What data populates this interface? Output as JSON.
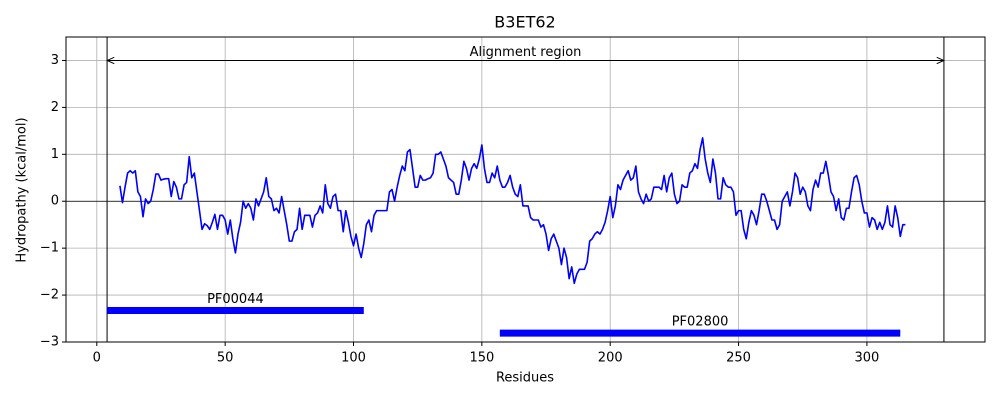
{
  "chart_data": {
    "type": "line",
    "title": "B3ET62",
    "xlabel": "Residues",
    "ylabel": "Hydropathy (kcal/mol)",
    "xlim": [
      -12,
      346
    ],
    "ylim": [
      -3,
      3.5
    ],
    "xticks": [
      0,
      50,
      100,
      150,
      200,
      250,
      300
    ],
    "yticks": [
      {
        "value": -3,
        "label": "−3"
      },
      {
        "value": -2,
        "label": "−2"
      },
      {
        "value": -1,
        "label": "−1"
      },
      0,
      1,
      2,
      3
    ],
    "grid": true,
    "hline": 0,
    "region": {
      "label": "Alignment region",
      "start": 4,
      "end": 330,
      "y": 3
    },
    "domains": [
      {
        "name": "PF00044",
        "start": 4,
        "end": 104,
        "y": -2.33,
        "color": "#0000ff"
      },
      {
        "name": "PF02800",
        "start": 157,
        "end": 313,
        "y": -2.81,
        "color": "#0000ff"
      }
    ],
    "x": [
      9,
      10,
      11,
      12,
      13,
      14,
      15,
      16,
      17,
      18,
      19,
      20,
      21,
      22,
      23,
      24,
      25,
      26,
      27,
      28,
      29,
      30,
      31,
      32,
      33,
      34,
      35,
      36,
      37,
      38,
      39,
      40,
      41,
      42,
      43,
      44,
      45,
      46,
      47,
      48,
      49,
      50,
      51,
      52,
      53,
      54,
      55,
      56,
      57,
      58,
      59,
      60,
      61,
      62,
      63,
      64,
      65,
      66,
      67,
      68,
      69,
      70,
      71,
      72,
      73,
      74,
      75,
      76,
      77,
      78,
      79,
      80,
      81,
      82,
      83,
      84,
      85,
      86,
      87,
      88,
      89,
      90,
      91,
      92,
      93,
      94,
      95,
      96,
      97,
      98,
      99,
      100,
      101,
      102,
      103,
      104,
      105,
      106,
      107,
      108,
      109,
      110,
      111,
      112,
      113,
      114,
      115,
      116,
      117,
      118,
      119,
      120,
      121,
      122,
      123,
      124,
      125,
      126,
      127,
      128,
      129,
      130,
      131,
      132,
      133,
      134,
      135,
      136,
      137,
      138,
      139,
      140,
      141,
      142,
      143,
      144,
      145,
      146,
      147,
      148,
      149,
      150,
      151,
      152,
      153,
      154,
      155,
      156,
      157,
      158,
      159,
      160,
      161,
      162,
      163,
      164,
      165,
      166,
      167,
      168,
      169,
      170,
      171,
      172,
      173,
      174,
      175,
      176,
      177,
      178,
      179,
      180,
      181,
      182,
      183,
      184,
      185,
      186,
      187,
      188,
      189,
      190,
      191,
      192,
      193,
      194,
      195,
      196,
      197,
      198,
      199,
      200,
      201,
      202,
      203,
      204,
      205,
      206,
      207,
      208,
      209,
      210,
      211,
      212,
      213,
      214,
      215,
      216,
      217,
      218,
      219,
      220,
      221,
      222,
      223,
      224,
      225,
      226,
      227,
      228,
      229,
      230,
      231,
      232,
      233,
      234,
      235,
      236,
      237,
      238,
      239,
      240,
      241,
      242,
      243,
      244,
      245,
      246,
      247,
      248,
      249,
      250,
      251,
      252,
      253,
      254,
      255,
      256,
      257,
      258,
      259,
      260,
      261,
      262,
      263,
      264,
      265,
      266,
      267,
      268,
      269,
      270,
      271,
      272,
      273,
      274,
      275,
      276,
      277,
      278,
      279,
      280,
      281,
      282,
      283,
      284,
      285,
      286,
      287,
      288,
      289,
      290,
      291,
      292,
      293,
      294,
      295,
      296,
      297,
      298,
      299,
      300,
      301,
      302,
      303,
      304,
      305,
      306,
      307,
      308,
      309,
      310,
      311,
      312,
      313,
      314,
      315
    ],
    "series": [
      {
        "color": "#0000ff",
        "values": [
          0.33,
          -0.03,
          0.3,
          0.6,
          0.65,
          0.6,
          0.65,
          0.2,
          0.1,
          -0.33,
          0.05,
          -0.05,
          0,
          0.25,
          0.58,
          0.58,
          0.45,
          0.47,
          0.48,
          0.48,
          0.1,
          0.42,
          0.3,
          0.05,
          0.05,
          0.35,
          0.4,
          0.95,
          0.5,
          0.6,
          0.2,
          -0.2,
          -0.6,
          -0.48,
          -0.52,
          -0.6,
          -0.45,
          -0.28,
          -0.6,
          -0.3,
          -0.3,
          -0.4,
          -0.7,
          -0.4,
          -0.8,
          -1.1,
          -0.7,
          -0.45,
          0,
          -0.15,
          -0.05,
          -0.15,
          -0.4,
          0.05,
          -0.1,
          0.05,
          0.2,
          0.5,
          0.1,
          0.05,
          -0.2,
          -0.15,
          -0.25,
          0.1,
          -0.2,
          -0.5,
          -0.85,
          -0.85,
          -0.65,
          -0.6,
          -0.15,
          -0.6,
          -0.3,
          -0.3,
          -0.3,
          -0.55,
          -0.3,
          -0.25,
          -0.1,
          -0.25,
          0.35,
          -0.05,
          -0.15,
          0.1,
          0.15,
          -0.2,
          -0.2,
          -0.65,
          -0.2,
          -0.45,
          -0.75,
          -0.95,
          -0.7,
          -1.0,
          -1.2,
          -0.9,
          -0.5,
          -0.4,
          -0.65,
          -0.3,
          -0.2,
          -0.2,
          -0.2,
          -0.2,
          -0.2,
          0.2,
          0.25,
          0,
          0.3,
          0.55,
          0.75,
          0.65,
          1.05,
          1.1,
          0.7,
          0.3,
          0.3,
          0.55,
          0.45,
          0.45,
          0.48,
          0.5,
          0.6,
          1.0,
          1.0,
          1.05,
          0.9,
          0.75,
          0.5,
          0.45,
          0.4,
          0.15,
          0.15,
          0.45,
          0.85,
          0.7,
          0.45,
          0.7,
          0.8,
          0.7,
          0.9,
          1.2,
          0.7,
          0.4,
          0.4,
          0.6,
          0.5,
          0.75,
          0.45,
          0.3,
          0.3,
          0.4,
          0.55,
          0.3,
          0.15,
          0.1,
          0.35,
          -0.1,
          -0.1,
          -0.1,
          -0.35,
          -0.4,
          -0.4,
          -0.4,
          -0.55,
          -0.5,
          -0.7,
          -1.05,
          -0.8,
          -0.7,
          -0.85,
          -1.0,
          -1.35,
          -1.0,
          -1.2,
          -1.65,
          -1.4,
          -1.75,
          -1.55,
          -1.45,
          -1.45,
          -1.45,
          -1.3,
          -0.85,
          -0.8,
          -0.7,
          -0.65,
          -0.7,
          -0.6,
          -0.45,
          -0.2,
          0.1,
          -0.35,
          -0.1,
          0.35,
          0.25,
          0.45,
          0.55,
          0.65,
          0.45,
          0.5,
          0.75,
          0.2,
          0.05,
          -0.05,
          0.15,
          0,
          0.05,
          0.3,
          0.3,
          0.3,
          0.25,
          0.55,
          0.2,
          0.5,
          0.6,
          0.15,
          -0.05,
          0,
          0.35,
          0.3,
          0.3,
          0.6,
          0.65,
          0.8,
          0.7,
          1.1,
          1.35,
          0.9,
          0.6,
          0.4,
          0.9,
          0.6,
          0.05,
          0.05,
          0.5,
          0.35,
          0.3,
          0.3,
          0.2,
          -0.3,
          -0.2,
          -0.2,
          -0.6,
          -0.8,
          -0.45,
          -0.2,
          -0.3,
          -0.5,
          -0.2,
          0.15,
          0.15,
          0,
          -0.2,
          -0.4,
          -0.4,
          -0.6,
          -0.5,
          0,
          0.1,
          0.2,
          -0.1,
          0.2,
          0.6,
          0.5,
          0.15,
          0.3,
          0.2,
          -0.1,
          -0.2,
          0.25,
          0.45,
          0.3,
          0.6,
          0.6,
          0.85,
          0.55,
          0.2,
          0.1,
          -0.2,
          0.05,
          -0.35,
          -0.4,
          -0.15,
          -0.15,
          0.2,
          0.5,
          0.55,
          0.35,
          0,
          -0.25,
          -0.25,
          -0.55,
          -0.35,
          -0.4,
          -0.6,
          -0.45,
          -0.6,
          -0.45,
          -0.1,
          -0.5,
          -0.55,
          -0.1,
          -0.35,
          -0.75,
          -0.5,
          -0.5
        ]
      }
    ]
  }
}
